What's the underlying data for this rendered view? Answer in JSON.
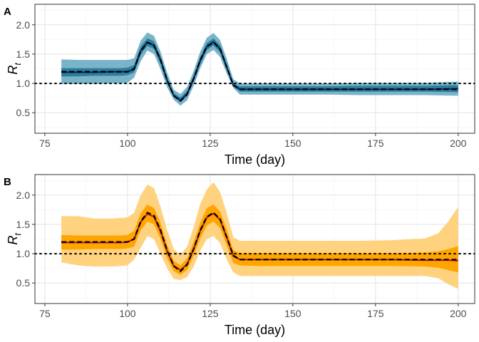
{
  "chart_data": [
    {
      "type": "area",
      "tag": "A",
      "xlabel": "Time (day)",
      "ylabel": "R",
      "ylabel_sub": "t",
      "xlim": [
        72,
        205
      ],
      "ylim": [
        0.15,
        2.35
      ],
      "xticks": [
        75,
        100,
        125,
        150,
        175,
        200
      ],
      "yticks": [
        0.5,
        1.0,
        1.5,
        2.0
      ],
      "ytick_labels": [
        "0.5",
        "1.0",
        "1.5",
        "2.0"
      ],
      "reference_line": 1.0,
      "grid": true,
      "colors": {
        "outer_band": "#79b4c9",
        "inner_band": "#2e7e9b",
        "mean_line": "#08306b",
        "truth_line": "#000000"
      },
      "x": [
        80,
        85,
        90,
        95,
        98,
        100,
        102,
        104,
        106,
        108,
        110,
        112,
        114,
        116,
        118,
        120,
        122,
        124,
        126,
        128,
        130,
        132,
        134,
        140,
        150,
        160,
        170,
        180,
        190,
        200
      ],
      "series": [
        {
          "role": "outer_lower",
          "values": [
            0.99,
            0.99,
            0.99,
            1.0,
            1.0,
            1.01,
            1.1,
            1.38,
            1.56,
            1.5,
            1.24,
            0.93,
            0.72,
            0.62,
            0.71,
            0.96,
            1.26,
            1.5,
            1.57,
            1.45,
            1.17,
            0.92,
            0.81,
            0.81,
            0.81,
            0.81,
            0.8,
            0.8,
            0.8,
            0.79
          ]
        },
        {
          "role": "inner_lower",
          "values": [
            1.12,
            1.12,
            1.13,
            1.13,
            1.13,
            1.14,
            1.19,
            1.49,
            1.64,
            1.59,
            1.33,
            1.0,
            0.77,
            0.68,
            0.78,
            1.03,
            1.33,
            1.57,
            1.65,
            1.53,
            1.23,
            0.95,
            0.86,
            0.86,
            0.86,
            0.86,
            0.86,
            0.86,
            0.86,
            0.85
          ]
        },
        {
          "role": "mean",
          "values": [
            1.19,
            1.19,
            1.19,
            1.2,
            1.2,
            1.2,
            1.24,
            1.56,
            1.7,
            1.65,
            1.4,
            1.05,
            0.79,
            0.71,
            0.82,
            1.08,
            1.39,
            1.63,
            1.71,
            1.59,
            1.28,
            0.97,
            0.9,
            0.9,
            0.9,
            0.9,
            0.9,
            0.9,
            0.9,
            0.91
          ]
        },
        {
          "role": "inner_upper",
          "values": [
            1.26,
            1.26,
            1.26,
            1.26,
            1.26,
            1.27,
            1.31,
            1.63,
            1.77,
            1.72,
            1.46,
            1.1,
            0.83,
            0.76,
            0.87,
            1.13,
            1.45,
            1.69,
            1.77,
            1.65,
            1.33,
            1.0,
            0.95,
            0.95,
            0.95,
            0.95,
            0.96,
            0.96,
            0.96,
            0.97
          ]
        },
        {
          "role": "outer_upper",
          "values": [
            1.41,
            1.4,
            1.4,
            1.4,
            1.4,
            1.4,
            1.43,
            1.73,
            1.87,
            1.81,
            1.54,
            1.18,
            0.89,
            0.82,
            0.94,
            1.21,
            1.54,
            1.78,
            1.86,
            1.74,
            1.42,
            1.07,
            1.0,
            1.0,
            1.0,
            1.0,
            1.01,
            1.01,
            1.01,
            1.03
          ]
        },
        {
          "role": "truth",
          "values": [
            1.2,
            1.2,
            1.2,
            1.2,
            1.2,
            1.2,
            1.25,
            1.55,
            1.7,
            1.65,
            1.4,
            1.05,
            0.79,
            0.7,
            0.81,
            1.08,
            1.4,
            1.63,
            1.7,
            1.59,
            1.28,
            0.97,
            0.9,
            0.9,
            0.9,
            0.9,
            0.9,
            0.9,
            0.9,
            0.9
          ]
        }
      ]
    },
    {
      "type": "area",
      "tag": "B",
      "xlabel": "Time (day)",
      "ylabel": "R",
      "ylabel_sub": "t",
      "xlim": [
        72,
        205
      ],
      "ylim": [
        0.15,
        2.35
      ],
      "xticks": [
        75,
        100,
        125,
        150,
        175,
        200
      ],
      "yticks": [
        0.5,
        1.0,
        1.5,
        2.0
      ],
      "ytick_labels": [
        "0.5",
        "1.0",
        "1.5",
        "2.0"
      ],
      "reference_line": 1.0,
      "grid": true,
      "colors": {
        "outer_band": "#ffd27f",
        "inner_band": "#ffa500",
        "mean_line": "#b22222",
        "truth_line": "#000000"
      },
      "x": [
        80,
        85,
        90,
        95,
        98,
        100,
        102,
        104,
        106,
        108,
        110,
        112,
        114,
        116,
        118,
        120,
        122,
        124,
        126,
        128,
        130,
        132,
        134,
        140,
        150,
        160,
        170,
        180,
        190,
        194,
        197,
        200
      ],
      "series": [
        {
          "role": "outer_lower",
          "values": [
            0.85,
            0.8,
            0.78,
            0.78,
            0.79,
            0.8,
            0.9,
            1.1,
            1.3,
            1.25,
            1.0,
            0.75,
            0.57,
            0.55,
            0.6,
            0.78,
            1.05,
            1.25,
            1.3,
            1.18,
            0.9,
            0.68,
            0.62,
            0.62,
            0.62,
            0.62,
            0.62,
            0.62,
            0.62,
            0.58,
            0.48,
            0.4
          ]
        },
        {
          "role": "inner_lower",
          "values": [
            1.07,
            1.07,
            1.08,
            1.08,
            1.08,
            1.09,
            1.12,
            1.4,
            1.55,
            1.5,
            1.25,
            0.92,
            0.7,
            0.64,
            0.72,
            0.96,
            1.26,
            1.48,
            1.55,
            1.44,
            1.14,
            0.84,
            0.8,
            0.79,
            0.79,
            0.79,
            0.79,
            0.79,
            0.78,
            0.76,
            0.72,
            0.68
          ]
        },
        {
          "role": "mean",
          "values": [
            1.19,
            1.19,
            1.19,
            1.19,
            1.19,
            1.2,
            1.25,
            1.54,
            1.68,
            1.63,
            1.38,
            1.04,
            0.79,
            0.72,
            0.82,
            1.08,
            1.39,
            1.62,
            1.69,
            1.58,
            1.28,
            0.96,
            0.9,
            0.9,
            0.9,
            0.9,
            0.9,
            0.9,
            0.89,
            0.89,
            0.89,
            0.88
          ]
        },
        {
          "role": "inner_upper",
          "values": [
            1.32,
            1.31,
            1.31,
            1.31,
            1.31,
            1.32,
            1.39,
            1.69,
            1.84,
            1.78,
            1.52,
            1.15,
            0.88,
            0.8,
            0.92,
            1.2,
            1.53,
            1.78,
            1.84,
            1.72,
            1.41,
            1.06,
            1.01,
            1.01,
            1.01,
            1.01,
            1.01,
            1.01,
            1.02,
            1.04,
            1.08,
            1.13
          ]
        },
        {
          "role": "outer_upper",
          "values": [
            1.64,
            1.64,
            1.6,
            1.6,
            1.61,
            1.62,
            1.7,
            2.0,
            2.18,
            2.12,
            1.8,
            1.4,
            1.08,
            0.98,
            1.12,
            1.45,
            1.85,
            2.1,
            2.22,
            2.05,
            1.7,
            1.28,
            1.22,
            1.22,
            1.22,
            1.22,
            1.22,
            1.23,
            1.26,
            1.35,
            1.55,
            1.8
          ]
        },
        {
          "role": "truth",
          "values": [
            1.2,
            1.2,
            1.2,
            1.2,
            1.2,
            1.2,
            1.25,
            1.55,
            1.7,
            1.65,
            1.4,
            1.05,
            0.79,
            0.7,
            0.81,
            1.08,
            1.4,
            1.63,
            1.7,
            1.59,
            1.28,
            0.97,
            0.9,
            0.9,
            0.9,
            0.9,
            0.9,
            0.9,
            0.9,
            0.9,
            0.9,
            0.9
          ]
        }
      ]
    }
  ]
}
